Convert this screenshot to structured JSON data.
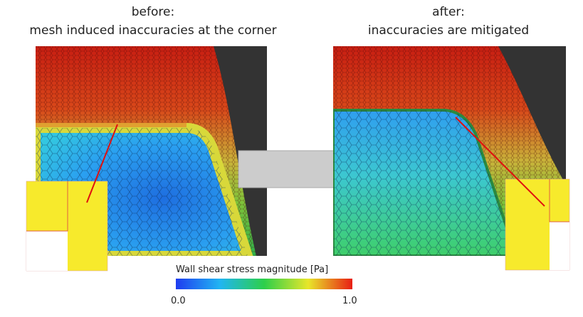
{
  "captions": {
    "left": {
      "line1": "before:",
      "line2": "mesh induced inaccuracies at the corner"
    },
    "right": {
      "line1": "after:",
      "line2": "inaccuracies are mitigated"
    }
  },
  "colorbar": {
    "title": "Wall shear stress magnitude [Pa]",
    "min_label": "0.0",
    "max_label": "1.0"
  }
}
